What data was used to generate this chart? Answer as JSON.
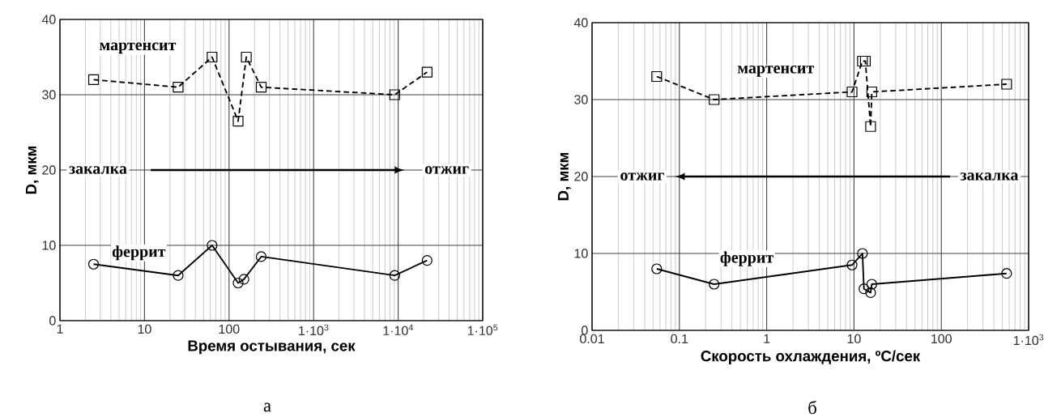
{
  "chart_data": [
    {
      "type": "line",
      "xlabel": "Время остывания, сек",
      "ylabel": "D, мкм",
      "log": "x",
      "grid": true,
      "xlim": [
        1,
        100000
      ],
      "ylim": [
        0,
        40
      ],
      "xticks": [
        1,
        10,
        100,
        {
          "value": 1000,
          "label": "1·10$^{3}$"
        },
        {
          "value": 10000,
          "label": "1·10$^{4}$"
        },
        {
          "value": 100000,
          "label": "1·10$^{5}$"
        }
      ],
      "yticks": [
        0,
        10,
        20,
        30,
        40
      ],
      "series": [
        {
          "name": "мартенсит",
          "color": "#000000",
          "marker": "square",
          "line_style": "dashed",
          "x": [
            2.5,
            25,
            63,
            128,
            160,
            240,
            9100,
            22000
          ],
          "values": [
            32,
            31,
            35,
            26.5,
            35,
            31,
            30,
            33
          ]
        },
        {
          "name": "феррит",
          "color": "#000000",
          "marker": "circle",
          "line_style": "solid",
          "x": [
            2.5,
            25,
            63,
            128,
            150,
            240,
            9100,
            22000
          ],
          "values": [
            7.5,
            6,
            10,
            5,
            5.5,
            8.5,
            6,
            8
          ]
        }
      ],
      "annotations": [
        "закалка",
        "отжиг",
        "а"
      ]
    },
    {
      "type": "line",
      "xlabel": "Скорость охлаждения, ºC/сек",
      "ylabel": "D, мкм",
      "log": "x",
      "grid": true,
      "xlim": [
        0.01,
        1000
      ],
      "ylim": [
        0,
        40
      ],
      "xticks": [
        0.01,
        0.1,
        1,
        10,
        100,
        {
          "value": 1000,
          "label": "1·10$^{3}$"
        }
      ],
      "yticks": [
        0,
        10,
        20,
        30,
        40
      ],
      "series": [
        {
          "name": "мартенсит",
          "color": "#000000",
          "marker": "square",
          "line_style": "dashed",
          "x": [
            0.055,
            0.25,
            9.5,
            12.5,
            13.5,
            15.5,
            16,
            560
          ],
          "values": [
            33,
            30,
            31,
            35,
            35,
            26.5,
            31,
            32
          ]
        },
        {
          "name": "феррит",
          "color": "#000000",
          "marker": "circle",
          "line_style": "solid",
          "x": [
            0.055,
            0.25,
            9.5,
            12.5,
            13,
            15.5,
            16,
            560
          ],
          "values": [
            8,
            6,
            8.5,
            10,
            5.4,
            4.9,
            6,
            7.4
          ]
        }
      ],
      "annotations": [
        "отжиг",
        "закалка",
        "б"
      ]
    }
  ]
}
